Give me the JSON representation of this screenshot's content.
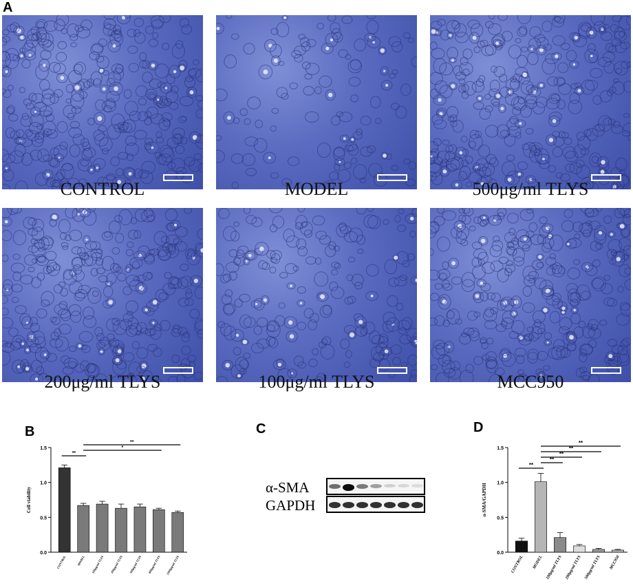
{
  "panel_labels": {
    "a": "A",
    "b": "B",
    "c": "C",
    "d": "D"
  },
  "micrographs": [
    {
      "caption": "CONTROL",
      "density": "high"
    },
    {
      "caption": "MODEL",
      "density": "low"
    },
    {
      "caption": "500μg/ml TLYS",
      "density": "high"
    },
    {
      "caption": "200μg/ml TLYS",
      "density": "high"
    },
    {
      "caption": "100μg/ml TLYS",
      "density": "medium"
    },
    {
      "caption": "MCC950",
      "density": "high"
    }
  ],
  "western_blot": {
    "rows": [
      {
        "label": "α-SMA",
        "intensities": [
          0.55,
          0.95,
          0.5,
          0.35,
          0.15,
          0.12,
          0.1
        ]
      },
      {
        "label": "GAPDH",
        "intensities": [
          0.8,
          0.8,
          0.8,
          0.8,
          0.8,
          0.8,
          0.8
        ]
      }
    ]
  },
  "chart_data": [
    {
      "type": "bar",
      "panel": "B",
      "ylabel": "Cell viability",
      "ylim": [
        0,
        1.5
      ],
      "yticks": [
        "0.0",
        "0.5",
        "1.0",
        "1.5"
      ],
      "categories": [
        "CONTROL",
        "MODEL",
        "100μg/ml TLYS",
        "200μg/ml TLYS",
        "500μg/ml TLYS",
        "800μg/ml TLYS",
        "1000μg/ml TLYS"
      ],
      "values": [
        1.21,
        0.67,
        0.69,
        0.63,
        0.65,
        0.61,
        0.57
      ],
      "errors": [
        0.04,
        0.03,
        0.04,
        0.06,
        0.04,
        0.02,
        0.02
      ],
      "colors": [
        "#333333",
        "#7a7a7a",
        "#7a7a7a",
        "#7a7a7a",
        "#7a7a7a",
        "#7a7a7a",
        "#7a7a7a"
      ],
      "significance": [
        {
          "from": 0,
          "to": 1,
          "label": "**"
        },
        {
          "from": 1,
          "to": 5,
          "label": "*"
        },
        {
          "from": 1,
          "to": 6,
          "label": "**"
        }
      ]
    },
    {
      "type": "bar",
      "panel": "D",
      "ylabel": "α-SMA/GAPDH",
      "ylim": [
        0,
        1.5
      ],
      "yticks": [
        "0.0",
        "0.5",
        "1.0",
        "1.5"
      ],
      "categories": [
        "CONTROL",
        "MODEL",
        "100μg/ml TLYS",
        "200μg/ml TLYS",
        "500μg/ml TLYS",
        "MCC950"
      ],
      "values": [
        0.16,
        1.01,
        0.21,
        0.09,
        0.04,
        0.03
      ],
      "errors": [
        0.04,
        0.12,
        0.07,
        0.02,
        0.015,
        0.01
      ],
      "colors": [
        "#111111",
        "#b5b5b5",
        "#8a8a8a",
        "#dddddd",
        "#9a9a9a",
        "#bbbbbb"
      ],
      "significance": [
        {
          "from": 0,
          "to": 1,
          "label": "**"
        },
        {
          "from": 1,
          "to": 2,
          "label": "**"
        },
        {
          "from": 1,
          "to": 3,
          "label": "**"
        },
        {
          "from": 1,
          "to": 4,
          "label": "**"
        },
        {
          "from": 1,
          "to": 5,
          "label": "**"
        }
      ]
    }
  ]
}
